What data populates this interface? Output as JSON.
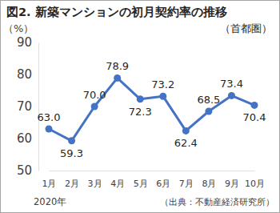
{
  "chart_data": {
    "type": "line",
    "title": "図2. 新築マンションの初月契約率の推移",
    "subtitle": "（首都圏）",
    "y_label": "（%）",
    "x_label": "2020年",
    "annotations": [
      "（出典：不動産経済研究所）"
    ],
    "categories": [
      "1月",
      "2月",
      "3月",
      "4月",
      "5月",
      "6月",
      "7月",
      "8月",
      "9月",
      "10月"
    ],
    "values": [
      63.0,
      59.3,
      70.0,
      78.9,
      72.3,
      73.2,
      62.4,
      68.5,
      73.4,
      70.4
    ],
    "value_labels": [
      "63.0",
      "59.3",
      "70.0",
      "78.9",
      "72.3",
      "73.2",
      "62.4",
      "68.5",
      "73.4",
      "70.4"
    ],
    "color": "#4472c4",
    "marker": "circle",
    "data_labels": true,
    "grid": false,
    "ylim": [
      50,
      90
    ],
    "yticks": [
      50,
      60,
      70,
      80,
      90
    ]
  }
}
